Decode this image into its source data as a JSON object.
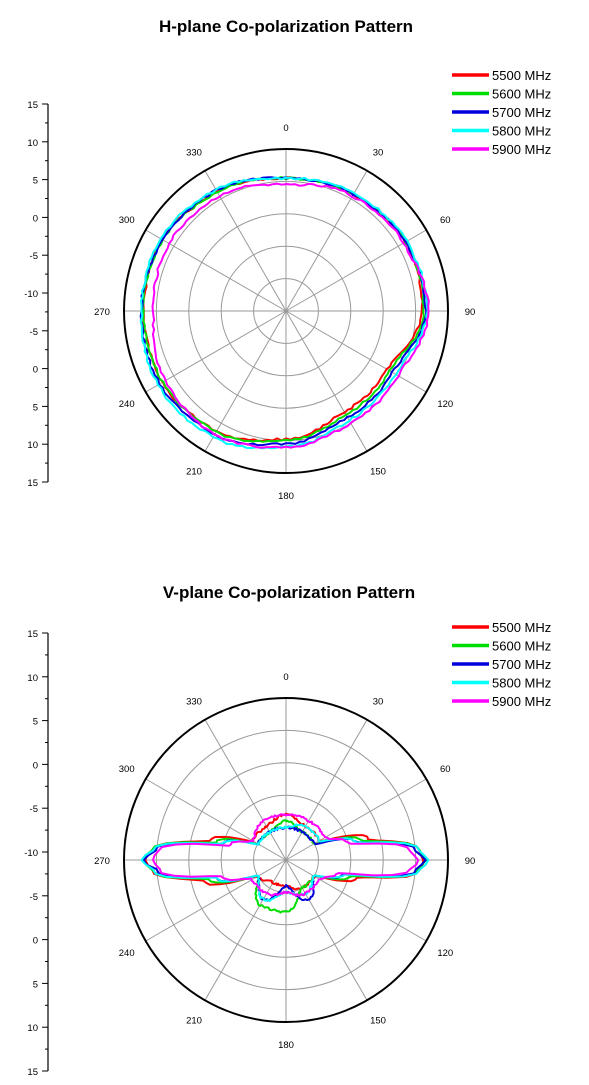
{
  "chart_data": [
    {
      "type": "polar-line",
      "title": "H-plane Co-polarization Pattern",
      "angle_ticks": [
        "0",
        "30",
        "60",
        "90",
        "120",
        "150",
        "180",
        "210",
        "240",
        "270",
        "300",
        "330"
      ],
      "radial_tick_labels": [
        "15",
        "10",
        "5",
        "0",
        "-5",
        "-10",
        "-5",
        "0",
        "5",
        "10",
        "15"
      ],
      "r_range_db": [
        -10,
        15
      ],
      "grid": true,
      "legend_position": "top-right",
      "series": [
        {
          "name": "5500 MHz",
          "color": "#ff0000",
          "theta_deg": [
            0,
            30,
            60,
            90,
            120,
            150,
            180,
            210,
            240,
            270,
            300,
            330
          ],
          "r_db": [
            10.5,
            10.8,
            11.3,
            11.0,
            8.0,
            8.0,
            9.8,
            11.5,
            12.0,
            12.0,
            12.0,
            11.2
          ]
        },
        {
          "name": "5600 MHz",
          "color": "#00dd00",
          "theta_deg": [
            0,
            30,
            60,
            90,
            120,
            150,
            180,
            210,
            240,
            270,
            300,
            330
          ],
          "r_db": [
            10.5,
            10.8,
            11.3,
            11.3,
            8.5,
            8.5,
            10.0,
            11.5,
            12.0,
            12.0,
            12.0,
            11.2
          ]
        },
        {
          "name": "5700 MHz",
          "color": "#0000dd",
          "theta_deg": [
            0,
            30,
            60,
            90,
            120,
            150,
            180,
            210,
            240,
            270,
            300,
            330
          ],
          "r_db": [
            10.5,
            10.8,
            11.3,
            11.5,
            9.0,
            9.0,
            10.5,
            12.0,
            12.5,
            12.3,
            12.0,
            11.5
          ]
        },
        {
          "name": "5800 MHz",
          "color": "#00ffff",
          "theta_deg": [
            0,
            30,
            60,
            90,
            120,
            150,
            180,
            210,
            240,
            270,
            300,
            330
          ],
          "r_db": [
            10.5,
            11.0,
            11.5,
            11.8,
            9.5,
            9.5,
            11.0,
            12.5,
            12.8,
            12.3,
            12.3,
            11.6
          ]
        },
        {
          "name": "5900 MHz",
          "color": "#ff00ff",
          "theta_deg": [
            0,
            30,
            60,
            90,
            120,
            150,
            180,
            210,
            240,
            270,
            300,
            330
          ],
          "r_db": [
            9.5,
            10.5,
            11.0,
            12.0,
            10.0,
            10.0,
            11.0,
            12.0,
            11.5,
            10.5,
            10.8,
            10.5
          ]
        }
      ]
    },
    {
      "type": "polar-line",
      "title": "V-plane Co-polarization Pattern",
      "angle_ticks": [
        "0",
        "30",
        "60",
        "90",
        "120",
        "150",
        "180",
        "210",
        "240",
        "270",
        "300",
        "330"
      ],
      "radial_tick_labels": [
        "15",
        "10",
        "5",
        "0",
        "-5",
        "-10",
        "-5",
        "0",
        "5",
        "10",
        "15"
      ],
      "r_range_db": [
        -10,
        15
      ],
      "grid": true,
      "legend_position": "top-right",
      "series": [
        {
          "name": "5500 MHz",
          "color": "#ff0000",
          "theta_deg": [
            0,
            30,
            60,
            75,
            85,
            90,
            95,
            105,
            120,
            150,
            180,
            210,
            240,
            255,
            265,
            270,
            275,
            285,
            300,
            330
          ],
          "r_db": [
            -3,
            -4,
            -4,
            3,
            10.5,
            11.3,
            10.5,
            1,
            -5,
            -5,
            -6,
            -6,
            -5,
            3,
            10.5,
            11.8,
            10.5,
            2,
            -4,
            -4
          ]
        },
        {
          "name": "5600 MHz",
          "color": "#00dd00",
          "theta_deg": [
            0,
            30,
            60,
            75,
            85,
            90,
            95,
            105,
            120,
            150,
            180,
            210,
            240,
            255,
            265,
            270,
            275,
            285,
            300,
            330
          ],
          "r_db": [
            -4,
            -5,
            -5,
            2,
            10.5,
            11.5,
            10.5,
            0,
            -5,
            -5,
            -2,
            -2,
            -5,
            2,
            10.5,
            12.0,
            10.5,
            1,
            -5,
            -5
          ]
        },
        {
          "name": "5700 MHz",
          "color": "#0000dd",
          "theta_deg": [
            0,
            30,
            60,
            75,
            85,
            90,
            95,
            105,
            120,
            150,
            180,
            210,
            240,
            255,
            265,
            270,
            275,
            285,
            300,
            330
          ],
          "r_db": [
            -5,
            -5,
            -5,
            1,
            10.0,
            11.5,
            10.0,
            -1,
            -5,
            -3,
            -6,
            -3,
            -5,
            1,
            10.0,
            12.0,
            10.0,
            0,
            -5,
            -5
          ]
        },
        {
          "name": "5800 MHz",
          "color": "#00ffff",
          "theta_deg": [
            0,
            30,
            60,
            75,
            85,
            90,
            95,
            105,
            120,
            150,
            180,
            210,
            240,
            255,
            265,
            270,
            275,
            285,
            300,
            330
          ],
          "r_db": [
            -5,
            -4,
            -4,
            1,
            10.5,
            12.0,
            10.5,
            -1,
            -5,
            -4,
            -5,
            -3,
            -5,
            1,
            10.5,
            12.3,
            10.5,
            0,
            -5,
            -5
          ]
        },
        {
          "name": "5900 MHz",
          "color": "#ff00ff",
          "theta_deg": [
            0,
            30,
            60,
            75,
            85,
            90,
            95,
            105,
            120,
            150,
            180,
            210,
            240,
            255,
            265,
            270,
            275,
            285,
            300,
            330
          ],
          "r_db": [
            -3,
            -3,
            -3,
            0,
            9.0,
            10.5,
            9.0,
            -2,
            -4,
            -4,
            -5,
            -4,
            -4,
            0,
            9.5,
            10.5,
            9.5,
            -1,
            -4,
            -3
          ]
        }
      ]
    }
  ]
}
